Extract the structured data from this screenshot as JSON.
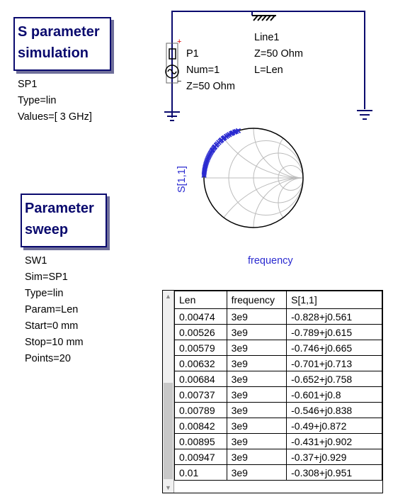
{
  "sp_block": {
    "line1": "S parameter",
    "line2": "simulation"
  },
  "sp_props": {
    "name": "SP1",
    "type": "Type=lin",
    "values": "Values=[ 3 GHz]"
  },
  "sw_block": {
    "line1": "Parameter",
    "line2": "sweep"
  },
  "sw_props": {
    "name": "SW1",
    "sim": "Sim=SP1",
    "type": "Type=lin",
    "param": "Param=Len",
    "start": "Start=0 mm",
    "stop": "Stop=10 mm",
    "points": "Points=20"
  },
  "port": {
    "name": "P1",
    "num": "Num=1",
    "z": "Z=50 Ohm",
    "plus": "+",
    "minus": "−"
  },
  "line": {
    "name": "Line1",
    "z": "Z=50 Ohm",
    "l": "L=Len"
  },
  "smith": {
    "ylabel": "S[1,1]",
    "xlabel": "frequency",
    "trace_color": "#2a2ad0"
  },
  "table": {
    "headers": [
      "Len",
      "frequency",
      "S[1,1]"
    ],
    "rows": [
      [
        "0.00474",
        "3e9",
        "-0.828+j0.561"
      ],
      [
        "0.00526",
        "3e9",
        "-0.789+j0.615"
      ],
      [
        "0.00579",
        "3e9",
        "-0.746+j0.665"
      ],
      [
        "0.00632",
        "3e9",
        "-0.701+j0.713"
      ],
      [
        "0.00684",
        "3e9",
        "-0.652+j0.758"
      ],
      [
        "0.00737",
        "3e9",
        "-0.601+j0.8"
      ],
      [
        "0.00789",
        "3e9",
        "-0.546+j0.838"
      ],
      [
        "0.00842",
        "3e9",
        "-0.49+j0.872"
      ],
      [
        "0.00895",
        "3e9",
        "-0.431+j0.902"
      ],
      [
        "0.00947",
        "3e9",
        "-0.37+j0.929"
      ],
      [
        "0.01",
        "3e9",
        "-0.308+j0.951"
      ]
    ]
  }
}
